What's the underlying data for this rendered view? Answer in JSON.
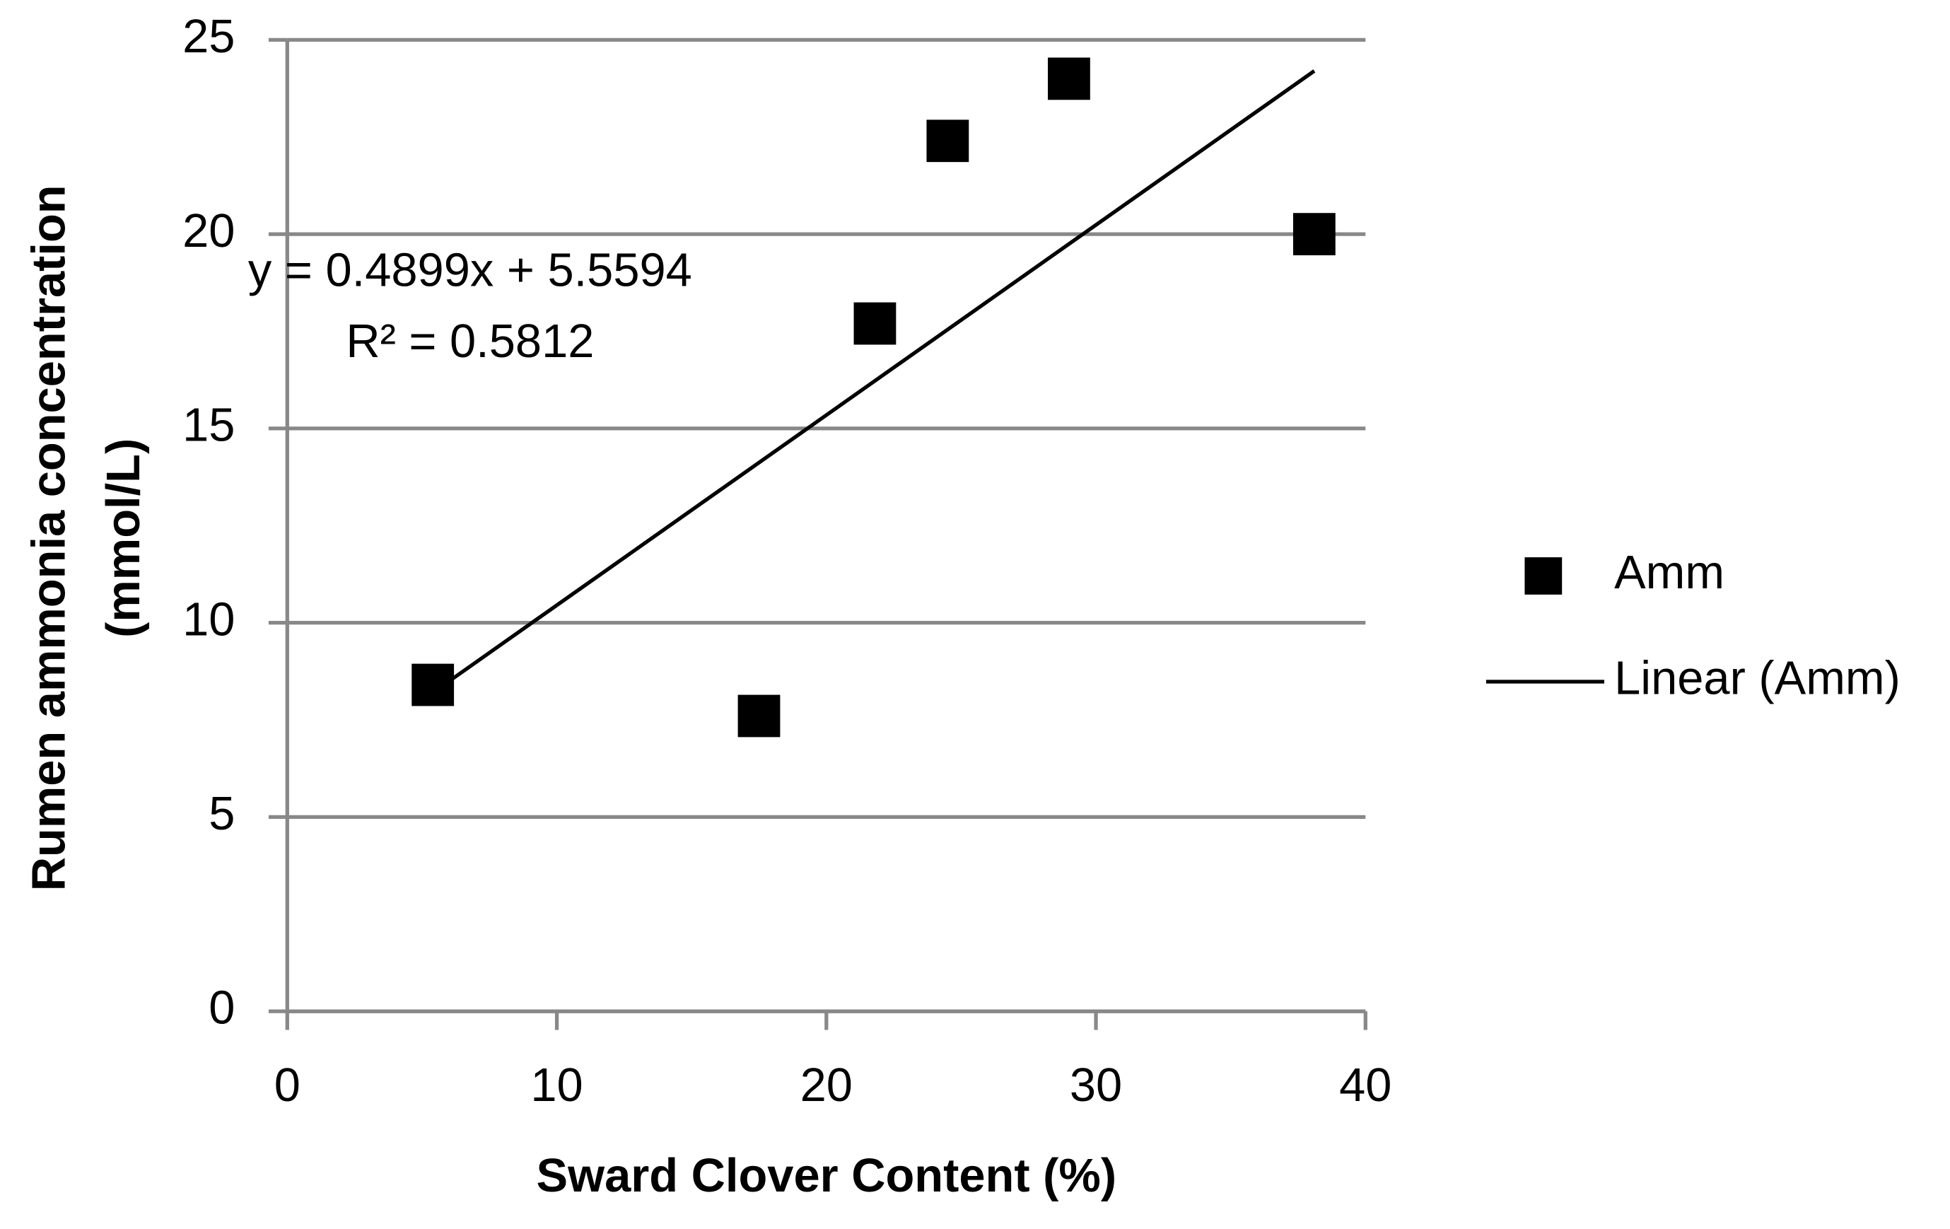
{
  "chart_data": {
    "type": "scatter",
    "x_label": "Sward Clover Content (%)",
    "y_label": [
      "Rumen ammonia concentration",
      "(mmol/L)"
    ],
    "series": [
      {
        "name": "Amm",
        "color": "#000000",
        "marker": "square",
        "x": [
          5.4,
          17.5,
          21.8,
          24.5,
          29.0,
          38.1
        ],
        "values": [
          8.4,
          7.6,
          17.7,
          22.4,
          24.0,
          20.0
        ]
      },
      {
        "name": "Linear (Amm)",
        "color": "#000000",
        "type": "line",
        "x": [
          5.4,
          38.1
        ],
        "values": [
          8.2,
          24.2
        ]
      }
    ],
    "annotations": [
      "y = 0.4899x + 5.5594",
      "R² = 0.5812"
    ],
    "xlim": [
      0,
      40
    ],
    "xticks": [
      0,
      10,
      20,
      30,
      40
    ],
    "ylim": [
      0,
      25
    ],
    "yticks": [
      0,
      5,
      10,
      15,
      20,
      25
    ],
    "grid": "y",
    "legend": "right"
  }
}
